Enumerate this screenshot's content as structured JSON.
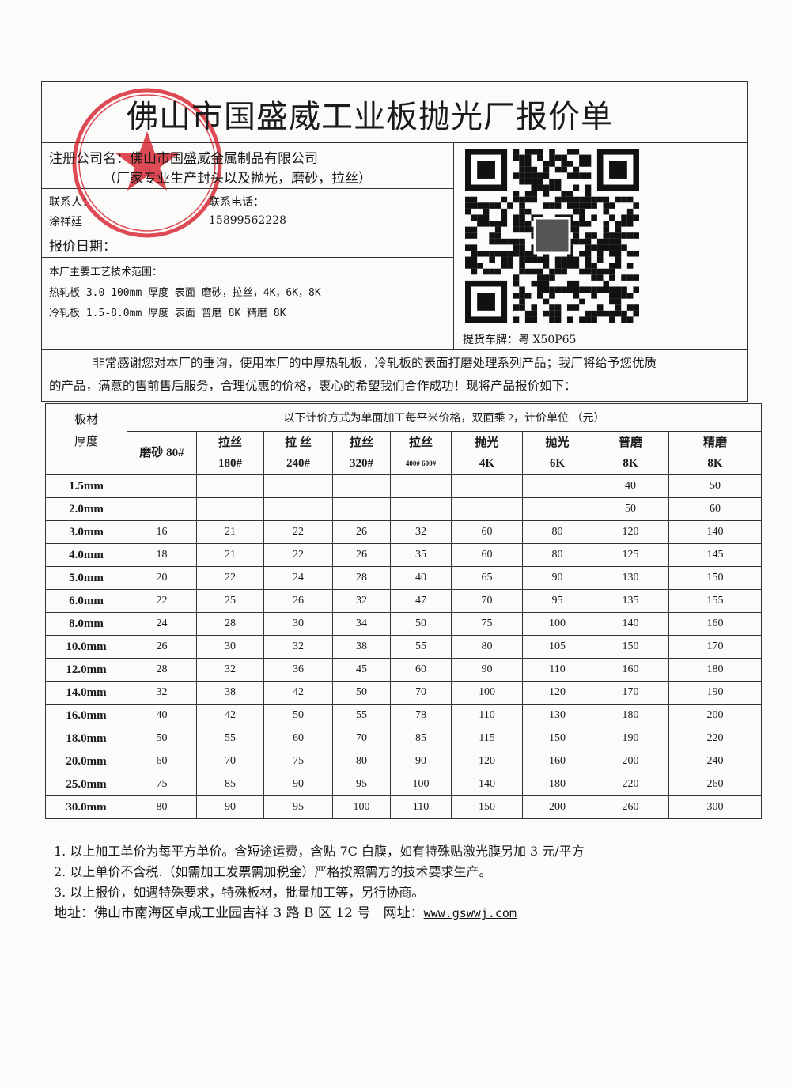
{
  "title": "佛山市国盛威工业板抛光厂报价单",
  "company": {
    "name_label": "注册公司名：",
    "name": "佛山市国盛威金属制品有限公司",
    "tagline": "（厂家专业生产封头以及抛光，磨砂，拉丝）",
    "contact_label": "联系人：",
    "contact": "涂祥廷",
    "phone_label": "联系电话：",
    "phone": "15899562228",
    "quote_date_label": "报价日期：",
    "quote_date": ""
  },
  "capabilities": {
    "heading": "本厂主要工艺技术范围：",
    "lines": [
      "热轧板 3.0-100mm 厚度 表面 磨砂，拉丝，4K，6K，8K",
      "冷轧板 1.5-8.0mm 厚度 表面 普磨 8K  精磨 8K"
    ]
  },
  "qr": {
    "icon": "qr-code",
    "plate_label": "提货车牌：粤 X50P65"
  },
  "stamp": {
    "text": "佛山市国盛威金属制品有限公司",
    "color": "#d81e2a"
  },
  "intro": [
    "非常感谢您对本厂的垂询，使用本厂的中厚热轧板，冷轧板的表面打磨处理系列产品；我厂将给予您优质",
    "的产品，满意的售前售后服务，合理优惠的价格，衷心的希望我们合作成功！现将产品报价如下："
  ],
  "table": {
    "corner": [
      "板材",
      "厚度"
    ],
    "caption": "以下计价方式为单面加工每平米价格，双面乘 2，计价单位 （元）",
    "columns": [
      [
        "磨砂 80#",
        ""
      ],
      [
        "拉丝",
        "180#"
      ],
      [
        "拉  丝",
        "240#"
      ],
      [
        "拉丝",
        "320#"
      ],
      [
        "拉丝",
        "400#  600#"
      ],
      [
        "抛光",
        "4K"
      ],
      [
        "抛光",
        "6K"
      ],
      [
        "普磨",
        "8K"
      ],
      [
        "精磨",
        "8K"
      ]
    ],
    "rows": [
      {
        "t": "1.5mm",
        "v": [
          "",
          "",
          "",
          "",
          "",
          "",
          "",
          "40",
          "50"
        ]
      },
      {
        "t": "2.0mm",
        "v": [
          "",
          "",
          "",
          "",
          "",
          "",
          "",
          "50",
          "60"
        ]
      },
      {
        "t": "3.0mm",
        "v": [
          "16",
          "21",
          "22",
          "26",
          "32",
          "60",
          "80",
          "120",
          "140"
        ]
      },
      {
        "t": "4.0mm",
        "v": [
          "18",
          "21",
          "22",
          "26",
          "35",
          "60",
          "80",
          "125",
          "145"
        ]
      },
      {
        "t": "5.0mm",
        "v": [
          "20",
          "22",
          "24",
          "28",
          "40",
          "65",
          "90",
          "130",
          "150"
        ]
      },
      {
        "t": "6.0mm",
        "v": [
          "22",
          "25",
          "26",
          "32",
          "47",
          "70",
          "95",
          "135",
          "155"
        ]
      },
      {
        "t": "8.0mm",
        "v": [
          "24",
          "28",
          "30",
          "34",
          "50",
          "75",
          "100",
          "140",
          "160"
        ]
      },
      {
        "t": "10.0mm",
        "v": [
          "26",
          "30",
          "32",
          "38",
          "55",
          "80",
          "105",
          "150",
          "170"
        ]
      },
      {
        "t": "12.0mm",
        "v": [
          "28",
          "32",
          "36",
          "45",
          "60",
          "90",
          "110",
          "160",
          "180"
        ]
      },
      {
        "t": "14.0mm",
        "v": [
          "32",
          "38",
          "42",
          "50",
          "70",
          "100",
          "120",
          "170",
          "190"
        ]
      },
      {
        "t": "16.0mm",
        "v": [
          "40",
          "42",
          "50",
          "55",
          "78",
          "110",
          "130",
          "180",
          "200"
        ]
      },
      {
        "t": "18.0mm",
        "v": [
          "50",
          "55",
          "60",
          "70",
          "85",
          "115",
          "150",
          "190",
          "220"
        ]
      },
      {
        "t": "20.0mm",
        "v": [
          "60",
          "70",
          "75",
          "80",
          "90",
          "120",
          "160",
          "200",
          "240"
        ]
      },
      {
        "t": "25.0mm",
        "v": [
          "75",
          "85",
          "90",
          "95",
          "100",
          "140",
          "180",
          "220",
          "260"
        ]
      },
      {
        "t": "30.0mm",
        "v": [
          "80",
          "90",
          "95",
          "100",
          "110",
          "150",
          "200",
          "260",
          "300"
        ]
      }
    ]
  },
  "notes": [
    "1.  以上加工单价为每平方单价。含短途运费，含贴 7C 白膜，如有特殊贴激光膜另加 3 元/平方",
    "2.  以上单价不含税.（如需加工发票需加税金）严格按照需方的技术要求生产。",
    "3.  以上报价，如遇特殊要求，特殊板材，批量加工等，另行协商。"
  ],
  "address_label": "地址：",
  "address": "佛山市南海区卓成工业园吉祥 3 路 B 区 12 号",
  "website_label": "网址：",
  "website": "www.gswwj.com"
}
